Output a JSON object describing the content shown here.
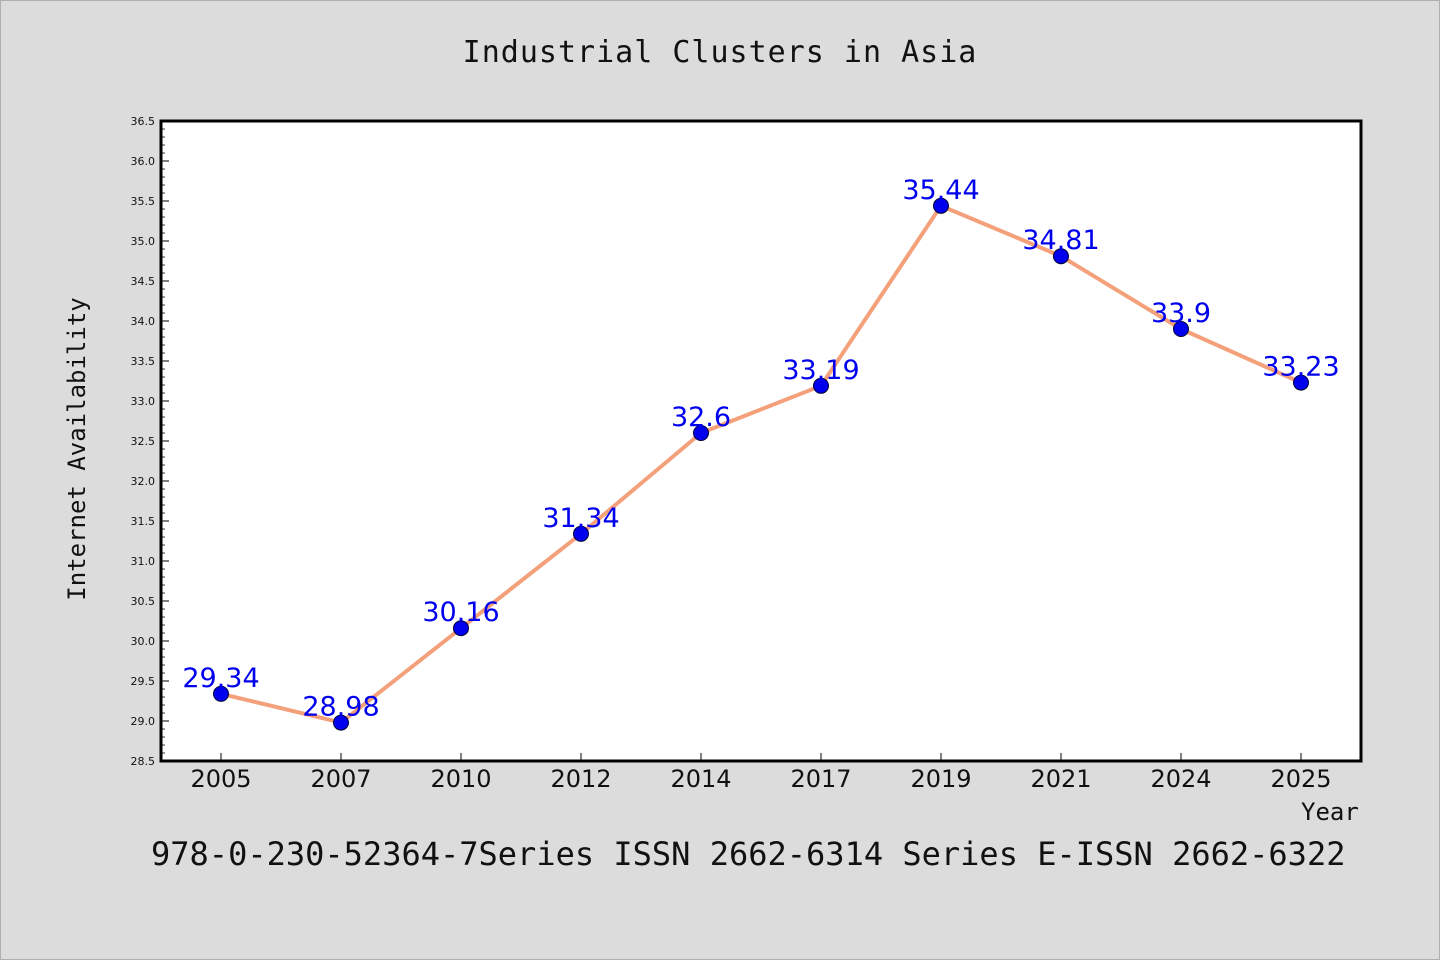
{
  "chart_data": {
    "type": "line",
    "title": "Industrial Clusters in Asia",
    "xlabel": "Year",
    "ylabel": "Internet Availability",
    "categories": [
      "2005",
      "2007",
      "2010",
      "2012",
      "2014",
      "2017",
      "2019",
      "2021",
      "2024",
      "2025"
    ],
    "series": [
      {
        "values": [
          29.34,
          28.98,
          30.16,
          31.34,
          32.6,
          33.19,
          35.44,
          34.81,
          33.9,
          33.23
        ],
        "data_labels": [
          "29.34",
          "28.98",
          "30.16",
          "31.34",
          "32.6",
          "33.19",
          "35.44",
          "34.81",
          "33.9",
          "33.23"
        ],
        "line_color": "#f4a07a",
        "marker_color": "#0000ee",
        "label_color": "#0000ee"
      }
    ],
    "ylim": [
      28.5,
      36.5
    ],
    "yticks": [
      "28.5",
      "29.0",
      "29.5",
      "30.0",
      "30.5",
      "31.0",
      "31.5",
      "32.0",
      "32.5",
      "33.0",
      "33.5",
      "34.0",
      "34.5",
      "35.0",
      "35.5",
      "36.0",
      "36.5"
    ],
    "grid": false,
    "legend": "none"
  },
  "footer": {
    "text": "978-0-230-52364-7Series ISSN 2662-6314 Series E-ISSN 2662-6322"
  },
  "colors": {
    "background": "#dcdcdc",
    "plot_background": "#ffffff",
    "line": "#f4a07a",
    "marker": "#0000ee",
    "data_label": "#0000ee"
  }
}
